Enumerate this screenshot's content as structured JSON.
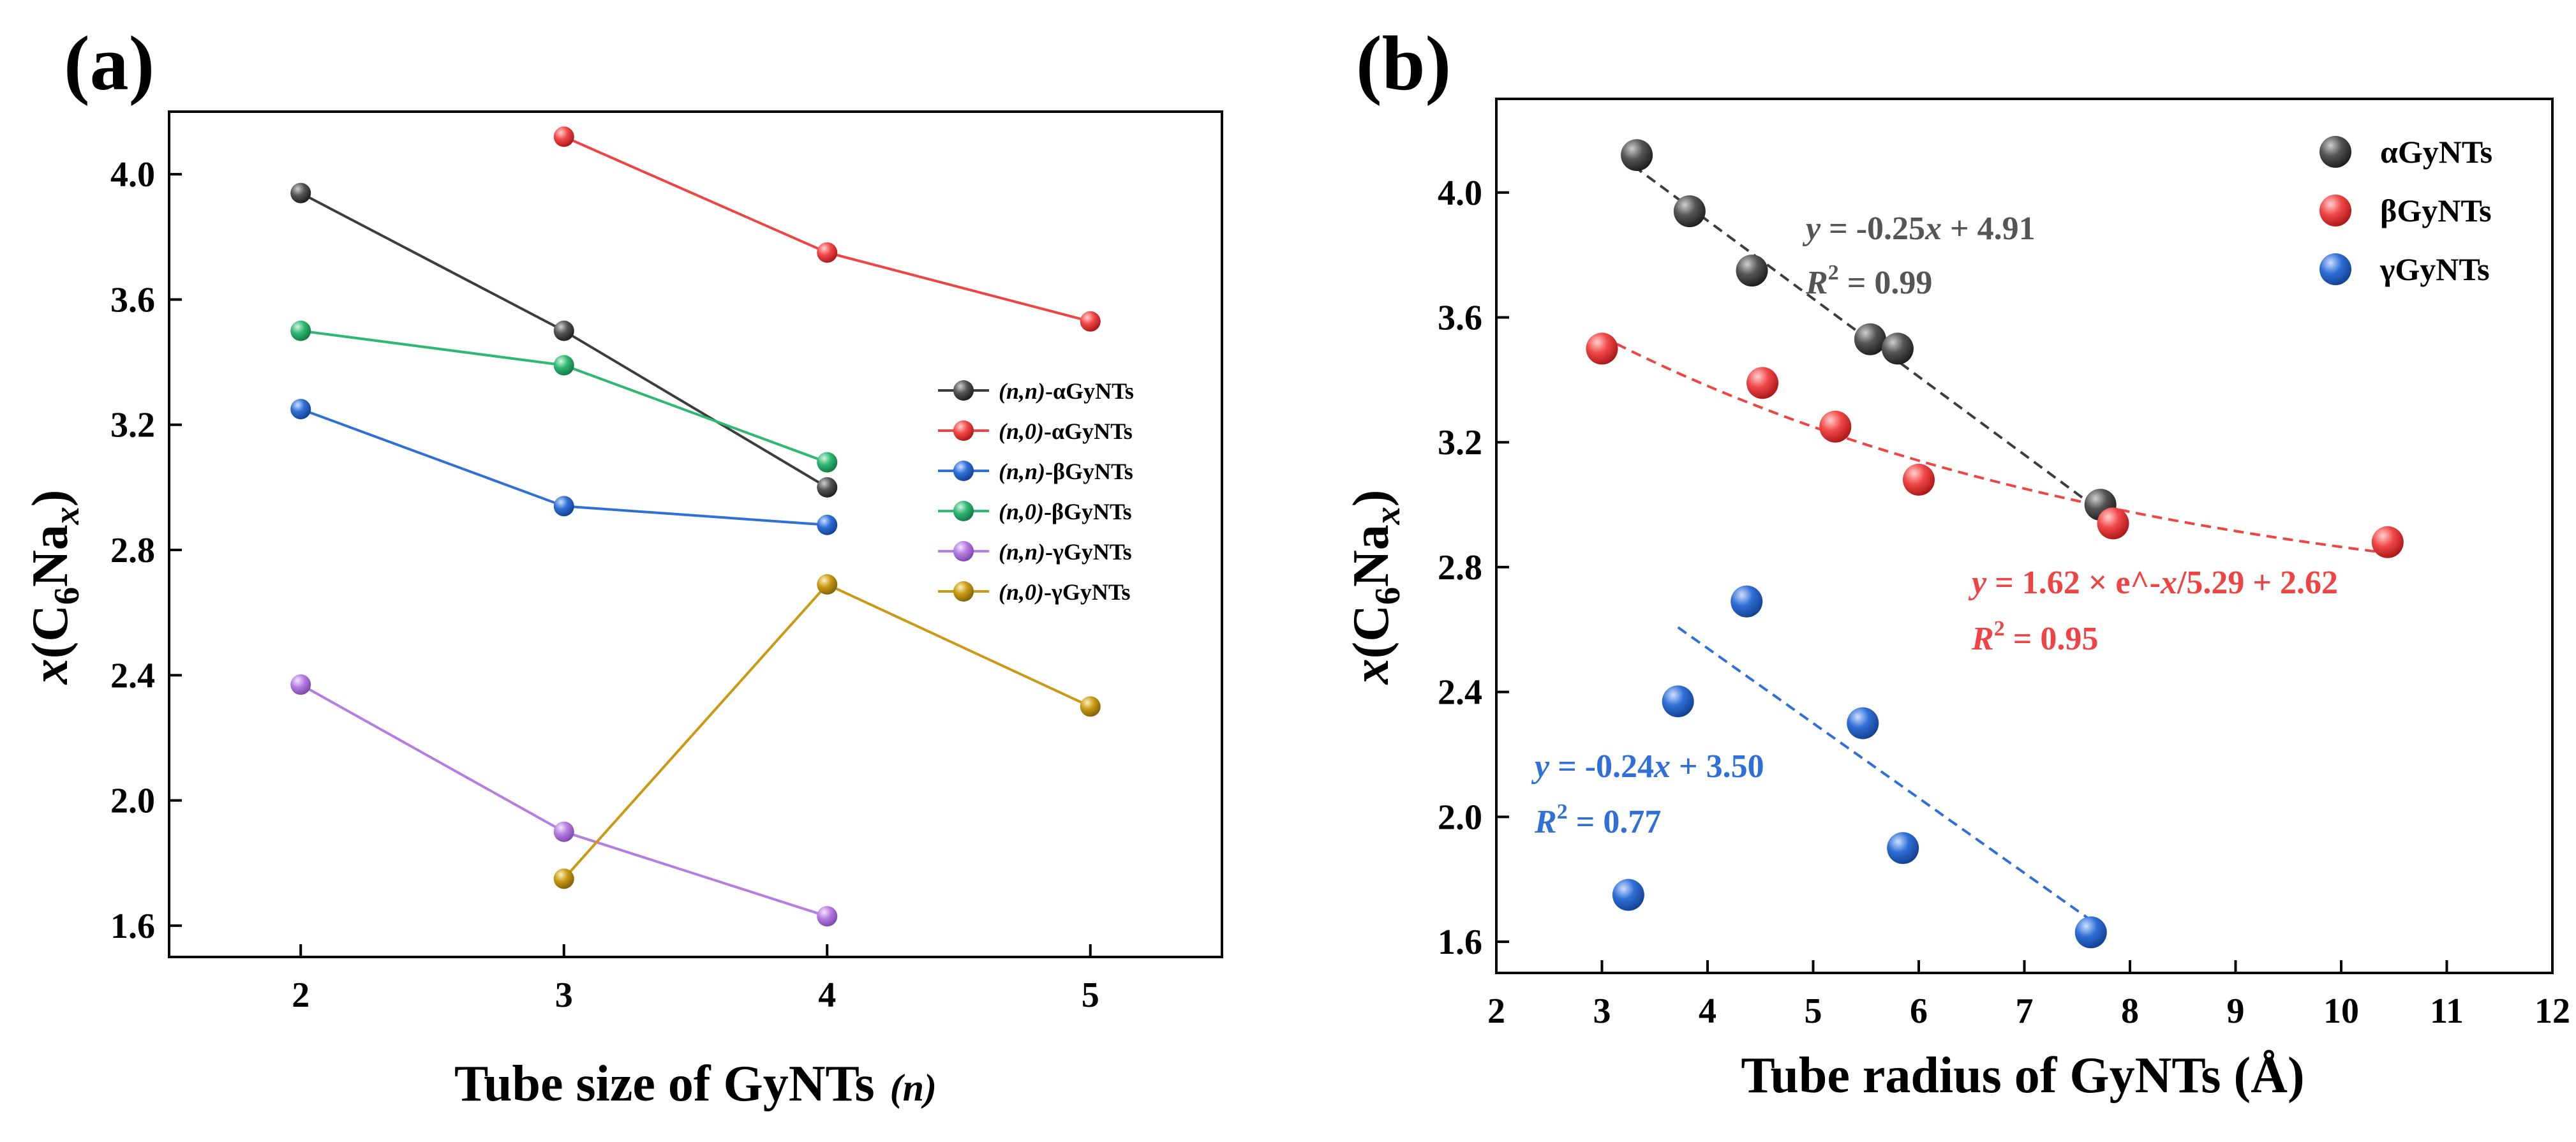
{
  "chart_data": [
    {
      "type": "line",
      "panel_label": "(a)",
      "xlabel_main": "Tube size of GyNTs",
      "xlabel_var": "(n)",
      "ylabel": "x(C6Nax)",
      "ylabel_parts": {
        "x": "x",
        "open": "(C",
        "sub6": "6",
        "na": "Na",
        "subx": "x",
        "close": ")"
      },
      "xlim": [
        1.5,
        5.5
      ],
      "ylim": [
        1.5,
        4.2
      ],
      "xticks": [
        2,
        3,
        4,
        5
      ],
      "xtick_labels": [
        "2",
        "3",
        "4",
        "5"
      ],
      "yticks": [
        1.6,
        2.0,
        2.4,
        2.8,
        3.2,
        3.6,
        4.0
      ],
      "ytick_labels": [
        "1.6",
        "2.0",
        "2.4",
        "2.8",
        "3.2",
        "3.6",
        "4.0"
      ],
      "legend_position": "right",
      "series": [
        {
          "name": "(n,n)-αGyNTs",
          "idx": "(n,n)",
          "rest": "-αGyNTs",
          "color": "#3d3d3d",
          "x": [
            2,
            3,
            4
          ],
          "y": [
            3.94,
            3.5,
            3.0
          ]
        },
        {
          "name": "(n,0)-αGyNTs",
          "idx": "(n,0)",
          "rest": "-αGyNTs",
          "color": "#ee4444",
          "x": [
            3,
            4,
            5
          ],
          "y": [
            4.12,
            3.75,
            3.53
          ]
        },
        {
          "name": "(n,n)-βGyNTs",
          "idx": "(n,n)",
          "rest": "-βGyNTs",
          "color": "#2f6fd6",
          "x": [
            2,
            3,
            4
          ],
          "y": [
            3.25,
            2.94,
            2.88
          ]
        },
        {
          "name": "(n,0)-βGyNTs",
          "idx": "(n,0)",
          "rest": "-βGyNTs",
          "color": "#2fb872",
          "x": [
            2,
            3,
            4
          ],
          "y": [
            3.5,
            3.39,
            3.08
          ]
        },
        {
          "name": "(n,n)-γGyNTs",
          "idx": "(n,n)",
          "rest": "-γGyNTs",
          "color": "#b57de0",
          "x": [
            2,
            3,
            4
          ],
          "y": [
            2.37,
            1.9,
            1.63
          ]
        },
        {
          "name": "(n,0)-γGyNTs",
          "idx": "(n,0)",
          "rest": "-γGyNTs",
          "color": "#c99a14",
          "x": [
            3,
            4,
            5
          ],
          "y": [
            1.75,
            2.69,
            2.3
          ]
        }
      ]
    },
    {
      "type": "scatter",
      "panel_label": "(b)",
      "xlabel": "Tube radius of GyNTs (Å)",
      "ylabel": "x(C6Nax)",
      "ylabel_parts": {
        "x": "x",
        "open": "(C",
        "sub6": "6",
        "na": "Na",
        "subx": "x",
        "close": ")"
      },
      "xlim": [
        2,
        12
      ],
      "ylim": [
        1.5,
        4.3
      ],
      "xticks": [
        2,
        3,
        4,
        5,
        6,
        7,
        8,
        9,
        10,
        11,
        12
      ],
      "xtick_labels": [
        "2",
        "3",
        "4",
        "5",
        "6",
        "7",
        "8",
        "9",
        "10",
        "11",
        "12"
      ],
      "yticks": [
        1.6,
        2.0,
        2.4,
        2.8,
        3.2,
        3.6,
        4.0
      ],
      "ytick_labels": [
        "1.6",
        "2.0",
        "2.4",
        "2.8",
        "3.2",
        "3.6",
        "4.0"
      ],
      "legend_position": "top-right",
      "series": [
        {
          "name": "αGyNTs",
          "color": "#3d3d3d",
          "x": [
            3.33,
            3.83,
            4.42,
            5.54,
            5.8,
            7.72
          ],
          "y": [
            4.12,
            3.94,
            3.75,
            3.53,
            3.5,
            3.0
          ]
        },
        {
          "name": "βGyNTs",
          "color": "#ee4444",
          "x": [
            3.0,
            4.52,
            5.21,
            6.0,
            7.84,
            10.44
          ],
          "y": [
            3.5,
            3.39,
            3.25,
            3.08,
            2.94,
            2.88
          ]
        },
        {
          "name": "γGyNTs",
          "color": "#2f6fd6",
          "x": [
            3.25,
            3.72,
            4.37,
            5.47,
            5.85,
            7.63
          ],
          "y": [
            1.75,
            2.37,
            2.69,
            2.3,
            1.9,
            1.63
          ]
        }
      ],
      "fits": [
        {
          "series": "αGyNTs",
          "color": "#3d3d3d",
          "kind": "linear",
          "a": -0.25,
          "b": 4.91,
          "x_range": [
            3.3,
            7.9
          ],
          "equation": {
            "y": "y",
            "mid": " = -0.25",
            "x": "x",
            "tail": " + 4.91"
          },
          "r2": {
            "R": "R",
            "sup": "2",
            "tail": " = 0.99"
          }
        },
        {
          "series": "βGyNTs",
          "color": "#ee4444",
          "kind": "exp_decay",
          "A": 1.62,
          "t": 5.29,
          "c": 2.62,
          "x_range": [
            3.0,
            10.5
          ],
          "equation": {
            "y": "y",
            "mid": " = 1.62 × e^-",
            "x": "x",
            "tail": "/5.29 + 2.62"
          },
          "r2": {
            "R": "R",
            "sup": "2",
            "tail": " = 0.95"
          }
        },
        {
          "series": "γGyNTs",
          "color": "#2f6fd6",
          "kind": "linear",
          "a": -0.24,
          "b": 3.5,
          "x_range": [
            3.72,
            7.7
          ],
          "equation": {
            "y": "y",
            "mid": " = -0.24",
            "x": "x",
            "tail": " + 3.50"
          },
          "r2": {
            "R": "R",
            "sup": "2",
            "tail": " = 0.77"
          }
        }
      ]
    }
  ]
}
